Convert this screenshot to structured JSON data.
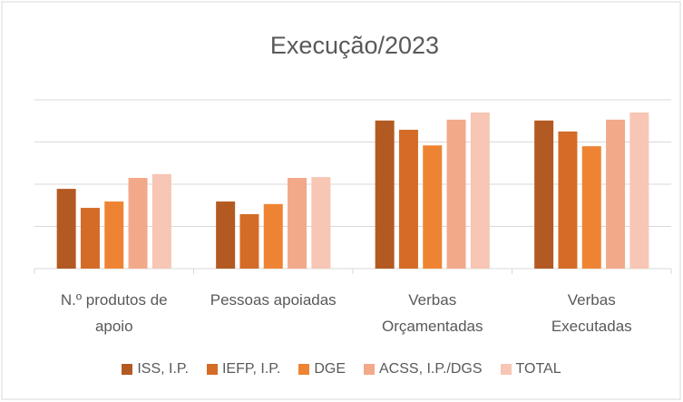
{
  "chart_data": {
    "type": "bar",
    "title": "Execução/2023",
    "categories": [
      "N.º produtos de apoio",
      "Pessoas apoiadas",
      "Verbas Orçamentadas",
      "Verbas Executadas"
    ],
    "series": [
      {
        "name": "ISS, I.P.",
        "color": "#b35a22",
        "values": [
          1.89,
          1.59,
          3.51,
          3.51
        ]
      },
      {
        "name": "IEFP, I.P.",
        "color": "#d46c28",
        "values": [
          1.44,
          1.29,
          3.29,
          3.25
        ]
      },
      {
        "name": "DGE",
        "color": "#ee8433",
        "values": [
          1.59,
          1.53,
          2.92,
          2.9
        ]
      },
      {
        "name": "ACSS, I.P./DGS",
        "color": "#f2a98a",
        "values": [
          2.15,
          2.15,
          3.53,
          3.53
        ]
      },
      {
        "name": "TOTAL",
        "color": "#f7c6b4",
        "values": [
          2.24,
          2.17,
          3.7,
          3.7
        ]
      }
    ],
    "ylim": [
      0,
      4
    ],
    "yticks": [
      0,
      1,
      2,
      3,
      4
    ],
    "grid": true,
    "legend": "bottom"
  }
}
